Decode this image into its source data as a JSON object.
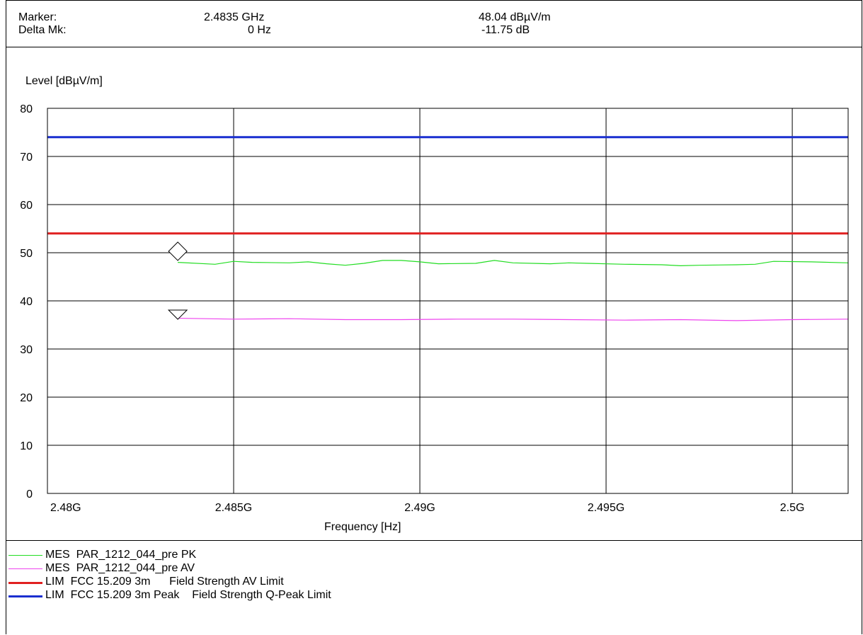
{
  "header": {
    "marker_label": "Marker:",
    "marker_freq": "2.4835 GHz",
    "marker_level": "48.04 dBµV/m",
    "delta_label": "Delta Mk:",
    "delta_freq": "0 Hz",
    "delta_level": "-11.75 dB"
  },
  "chart_data": {
    "type": "line",
    "ylabel": "Level [dBµV/m]",
    "xlabel": "Frequency [Hz]",
    "xlim": [
      2.48,
      2.5015
    ],
    "ylim": [
      0,
      80
    ],
    "x_ticks": [
      2.48,
      2.485,
      2.49,
      2.495,
      2.5
    ],
    "x_tick_labels": [
      "2.48G",
      "2.485G",
      "2.49G",
      "2.495G",
      "2.5G"
    ],
    "y_ticks": [
      0,
      10,
      20,
      30,
      40,
      50,
      60,
      70,
      80
    ],
    "y_tick_labels": [
      "0",
      "10",
      "20",
      "30",
      "40",
      "50",
      "60",
      "70",
      "80"
    ],
    "grid": true,
    "series": [
      {
        "name": "MES  PAR_1212_044_pre PK",
        "color": "#22dd22",
        "x": [
          2.4835,
          2.4845,
          2.485,
          2.4855,
          2.4865,
          2.487,
          2.4875,
          2.488,
          2.4885,
          2.489,
          2.4895,
          2.49,
          2.4905,
          2.4915,
          2.492,
          2.4925,
          2.4935,
          2.494,
          2.4945,
          2.4955,
          2.4965,
          2.497,
          2.4975,
          2.4985,
          2.499,
          2.4995,
          2.5005,
          2.5015
        ],
        "values": [
          48.0,
          47.6,
          48.2,
          48.0,
          47.9,
          48.1,
          47.7,
          47.4,
          47.8,
          48.4,
          48.4,
          48.1,
          47.7,
          47.8,
          48.4,
          47.9,
          47.7,
          47.9,
          47.8,
          47.6,
          47.5,
          47.3,
          47.4,
          47.5,
          47.6,
          48.2,
          48.1,
          47.9
        ]
      },
      {
        "name": "MES  PAR_1212_044_pre AV",
        "color": "#ee44ee",
        "x": [
          2.4835,
          2.485,
          2.4865,
          2.488,
          2.4895,
          2.491,
          2.4925,
          2.494,
          2.4955,
          2.497,
          2.4985,
          2.5,
          2.5015
        ],
        "values": [
          36.4,
          36.2,
          36.3,
          36.1,
          36.1,
          36.2,
          36.2,
          36.1,
          36.0,
          36.1,
          35.9,
          36.1,
          36.2
        ]
      },
      {
        "name": "LIM  FCC 15.209 3m      Field Strength AV Limit",
        "color": "#e02020",
        "x": [
          2.48,
          2.5015
        ],
        "values": [
          54,
          54
        ]
      },
      {
        "name": "LIM  FCC 15.209 3m Peak    Field Strength Q-Peak Limit",
        "color": "#1a2fd0",
        "x": [
          2.48,
          2.5015
        ],
        "values": [
          74,
          74
        ]
      }
    ],
    "markers": [
      {
        "shape": "diamond",
        "x": 2.4835,
        "y": 50.3
      },
      {
        "shape": "triangle-down",
        "x": 2.4835,
        "y": 37.2
      }
    ]
  },
  "legend": [
    {
      "text": "MES  PAR_1212_044_pre PK",
      "color": "#22dd22"
    },
    {
      "text": "MES  PAR_1212_044_pre AV",
      "color": "#ee44ee"
    },
    {
      "text": "LIM  FCC 15.209 3m      Field Strength AV Limit",
      "color": "#e02020"
    },
    {
      "text": "LIM  FCC 15.209 3m Peak    Field Strength Q-Peak Limit",
      "color": "#1a2fd0"
    }
  ]
}
